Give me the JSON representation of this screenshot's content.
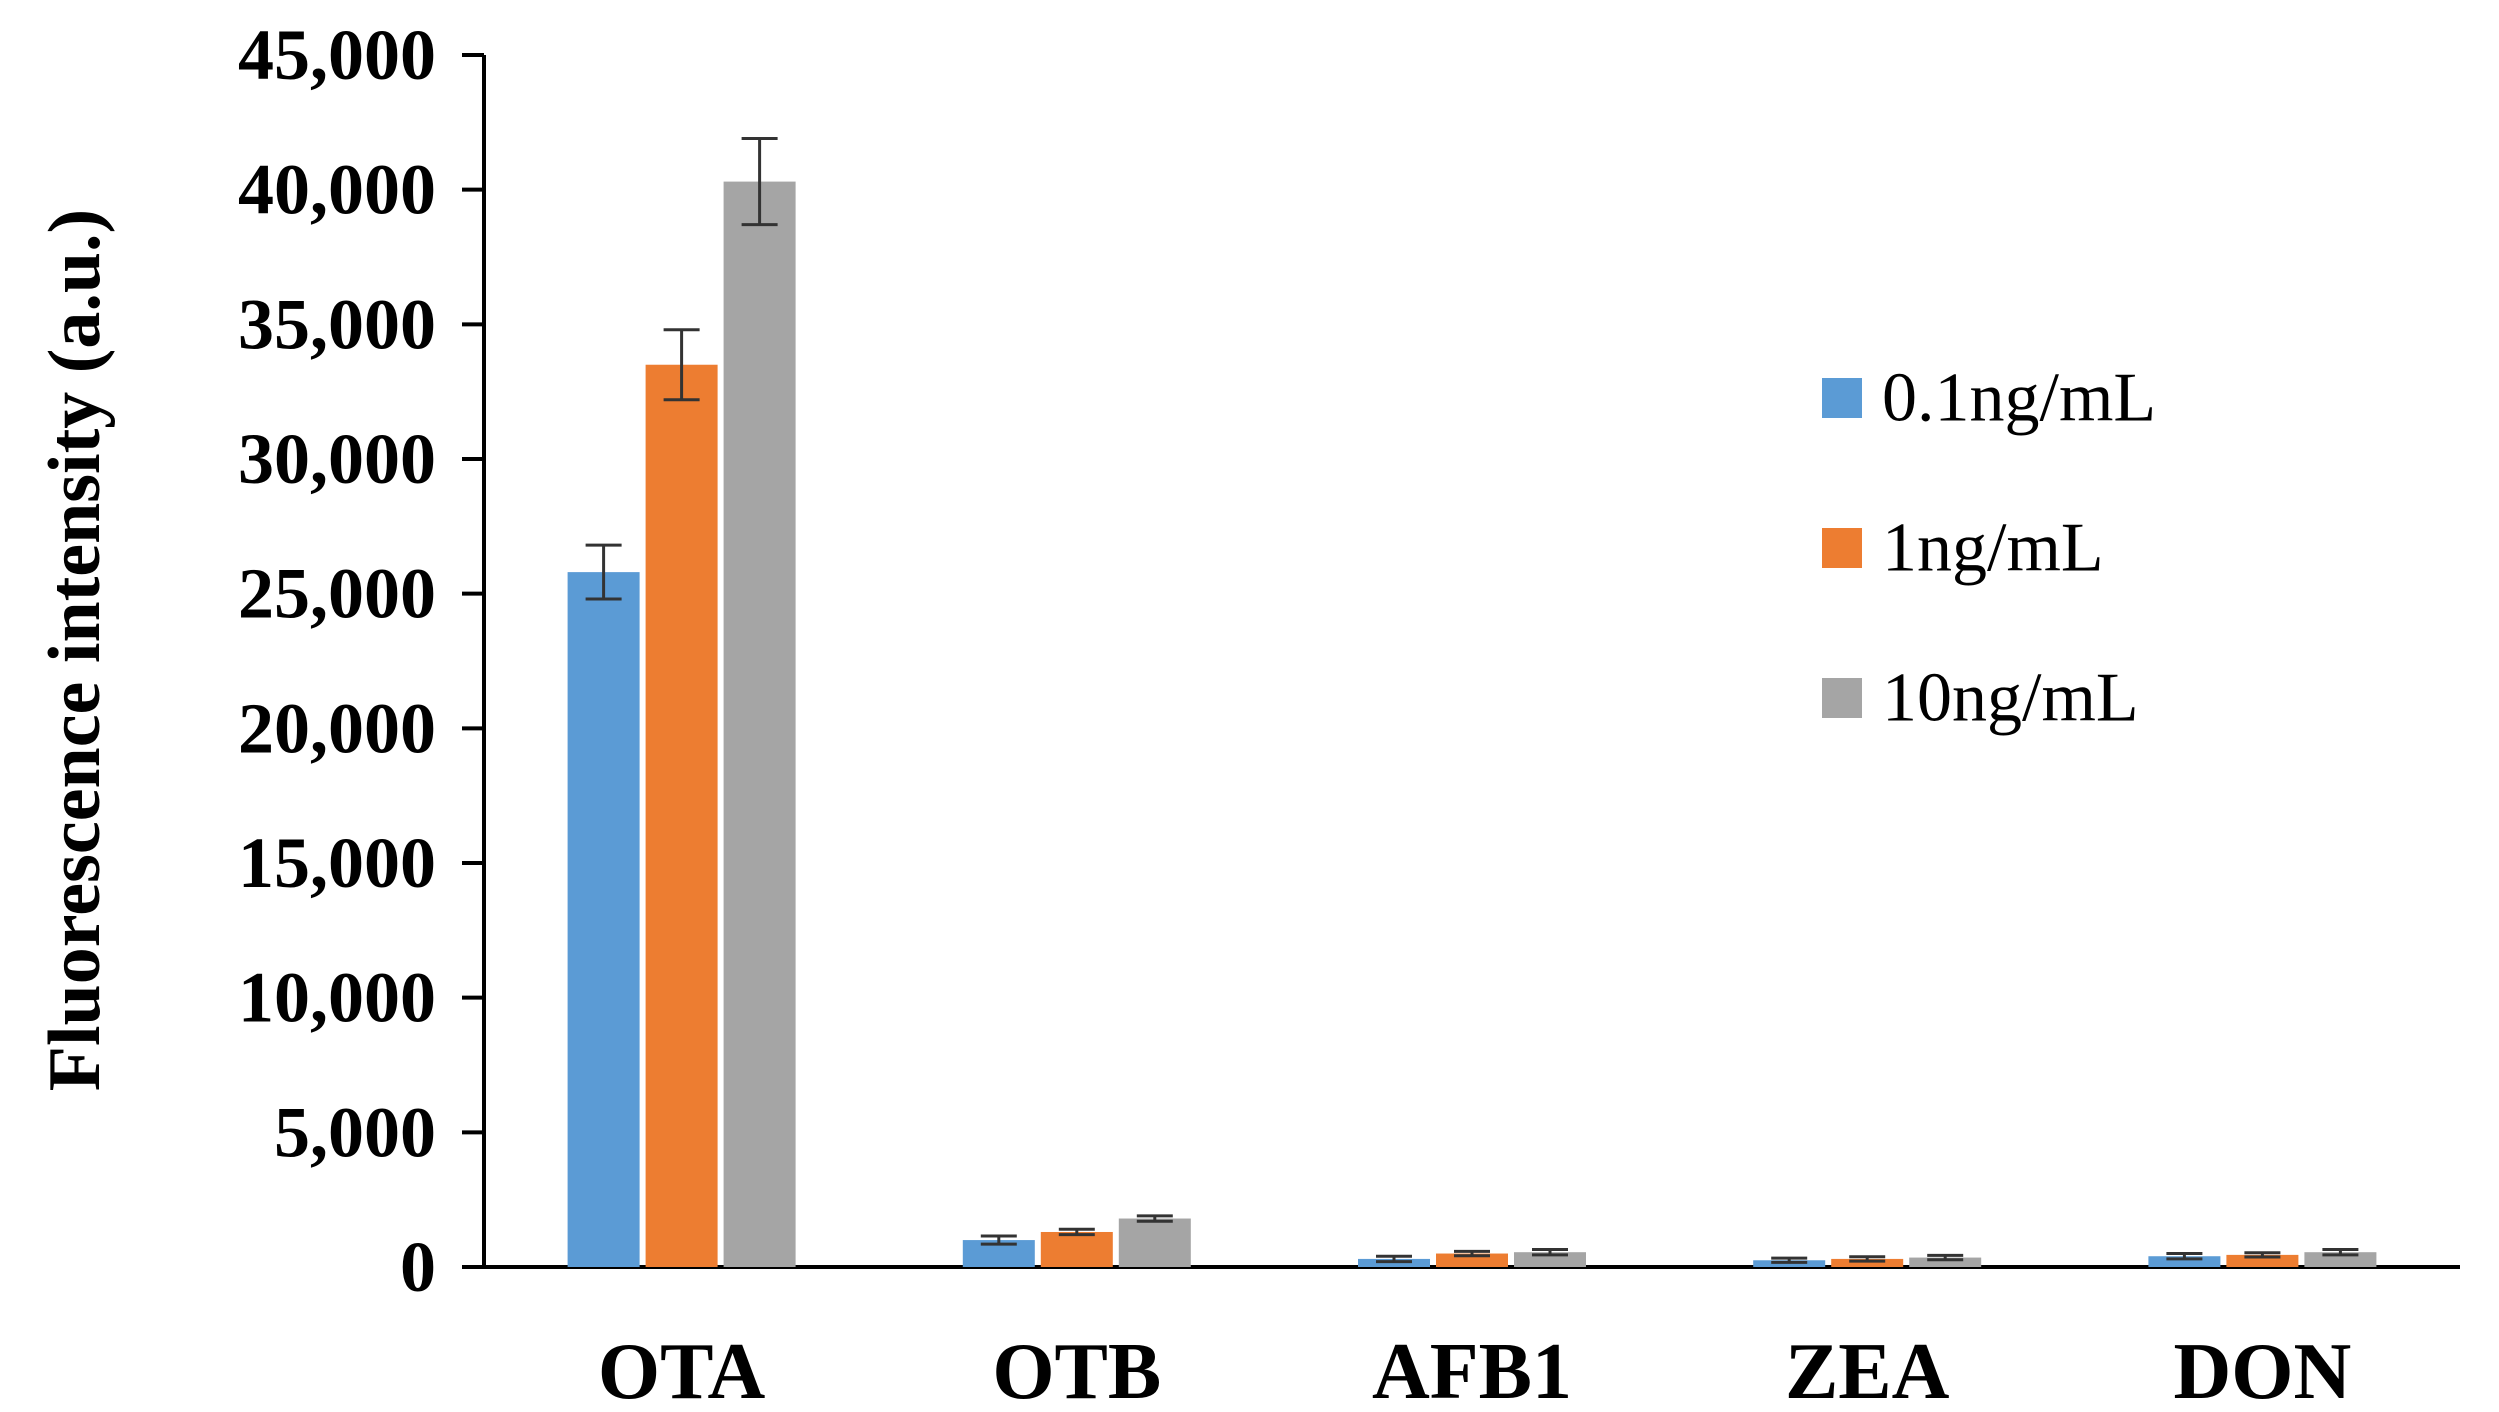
{
  "chart_data": {
    "type": "bar",
    "title": "",
    "xlabel": "",
    "ylabel": "Fluorescence intensity (a.u.)",
    "ylim": [
      0,
      45000
    ],
    "yticks": [
      0,
      5000,
      10000,
      15000,
      20000,
      25000,
      30000,
      35000,
      40000,
      45000
    ],
    "ytick_labels": [
      "0",
      "5,000",
      "10,000",
      "15,000",
      "20,000",
      "25,000",
      "30,000",
      "35,000",
      "40,000",
      "45,000"
    ],
    "categories": [
      "OTA",
      "OTB",
      "AFB1",
      "ZEA",
      "DON"
    ],
    "series": [
      {
        "name": "0.1ng/mL",
        "color": "#5B9BD5",
        "values": [
          25800,
          1000,
          300,
          250,
          400
        ],
        "errors": [
          1000,
          150,
          100,
          80,
          100
        ]
      },
      {
        "name": "1ng/mL",
        "color": "#ED7D31",
        "values": [
          33500,
          1300,
          500,
          300,
          450
        ],
        "errors": [
          1300,
          100,
          80,
          80,
          80
        ]
      },
      {
        "name": "10ng/mL",
        "color": "#A5A5A5",
        "values": [
          40300,
          1800,
          550,
          350,
          550
        ],
        "errors": [
          1600,
          100,
          100,
          80,
          100
        ]
      }
    ],
    "legend_position": "right",
    "grid": false
  }
}
